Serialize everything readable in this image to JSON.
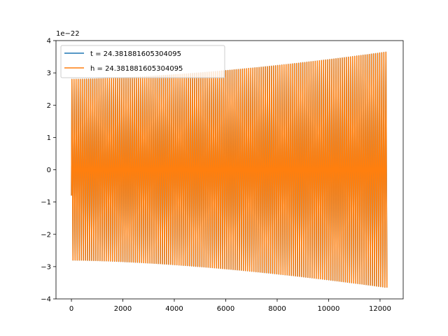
{
  "chart_data": {
    "type": "line",
    "title": "",
    "xlabel": "",
    "ylabel": "",
    "y_offset_label": "1e−22",
    "xlim": [
      -600,
      12900
    ],
    "ylim": [
      -4,
      4
    ],
    "x_ticks": [
      0,
      2000,
      4000,
      6000,
      8000,
      10000,
      12000
    ],
    "x_tick_labels": [
      "0",
      "2000",
      "4000",
      "6000",
      "8000",
      "10000",
      "12000"
    ],
    "y_ticks": [
      -4,
      -3,
      -2,
      -1,
      0,
      1,
      2,
      3,
      4
    ],
    "y_tick_labels": [
      "−4",
      "−3",
      "−2",
      "−1",
      "0",
      "1",
      "2",
      "3",
      "4"
    ],
    "grid": false,
    "legend_position": "top-left",
    "signal": {
      "x_start": 0,
      "x_end": 12288,
      "cycles": 152,
      "amplitude_start": 2.8,
      "amplitude_end": 3.65,
      "initial_value": -0.8
    },
    "series": [
      {
        "name": "t = 24.381881605304095",
        "color": "#1f77b4"
      },
      {
        "name": "h = 24.381881605304095",
        "color": "#ff7f0e"
      }
    ]
  }
}
